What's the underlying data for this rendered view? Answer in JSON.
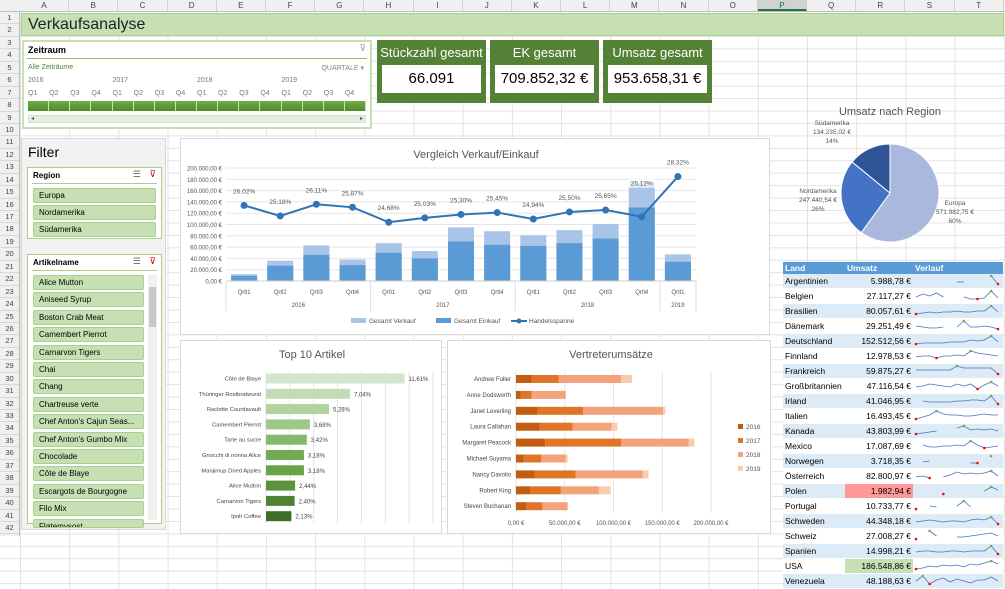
{
  "columns": [
    "A",
    "B",
    "C",
    "D",
    "E",
    "F",
    "G",
    "H",
    "I",
    "J",
    "K",
    "L",
    "M",
    "N",
    "O",
    "P",
    "Q",
    "R",
    "S",
    "T"
  ],
  "selected_column": "P",
  "title": "Verkaufsanalyse",
  "timeline": {
    "title": "Zeitraum",
    "selection": "Alle Zeiträume",
    "level": "QUARTALE ▾",
    "years": [
      "2016",
      "2017",
      "2018",
      "2019"
    ],
    "quarters": [
      "Q1",
      "Q2",
      "Q3",
      "Q4"
    ]
  },
  "kpis": [
    {
      "label": "Stückzahl gesamt",
      "value": "66.091"
    },
    {
      "label": "EK gesamt",
      "value": "709.852,32 €"
    },
    {
      "label": "Umsatz gesamt",
      "value": "953.658,31 €"
    }
  ],
  "filter": {
    "title": "Filter",
    "region": {
      "title": "Region",
      "items": [
        "Europa",
        "Nordamerika",
        "Südamerika"
      ]
    },
    "artikel": {
      "title": "Artikelname",
      "items": [
        "Alice Mutton",
        "Aniseed Syrup",
        "Boston Crab Meat",
        "Camembert Pierrot",
        "Carnarvon Tigers",
        "Chai",
        "Chang",
        "Chartreuse verte",
        "Chef Anton's Cajun Seas...",
        "Chef Anton's Gumbo Mix",
        "Chocolade",
        "Côte de Blaye",
        "Escargots de Bourgogne",
        "Filo Mix",
        "Fløtemysost"
      ]
    }
  },
  "chart_data": [
    {
      "type": "bar",
      "title": "Vergleich Verkauf/Einkauf",
      "categories": [
        "Qrtl1",
        "Qrtl2",
        "Qrtl3",
        "Qrtl4",
        "Qrtl1",
        "Qrtl2",
        "Qrtl3",
        "Qrtl4",
        "Qrtl1",
        "Qrtl2",
        "Qrtl3",
        "Qrtl4",
        "Qrtl1"
      ],
      "groups": [
        {
          "label": "2016",
          "count": 4
        },
        {
          "label": "2017",
          "count": 4
        },
        {
          "label": "2018",
          "count": 4
        },
        {
          "label": "2019",
          "count": 1
        }
      ],
      "yticks": [
        "0,00 €",
        "20.000,00 €",
        "40.000,00 €",
        "60.000,00 €",
        "80.000,00 €",
        "100.000,00 €",
        "120.000,00 €",
        "140.000,00 €",
        "160.000,00 €",
        "180.000,00 €",
        "200.000,00 €"
      ],
      "ylim": [
        0,
        200000
      ],
      "y2lim": [
        20,
        29
      ],
      "series": [
        {
          "name": "Gesamt Verkauf",
          "color": "#a9c4e8",
          "values": [
            12000,
            36000,
            63000,
            38000,
            67000,
            53000,
            95000,
            88000,
            81000,
            90000,
            101000,
            175000,
            47000
          ]
        },
        {
          "name": "Gesamt Einkauf",
          "color": "#5b9bd5",
          "values": [
            9000,
            27000,
            46000,
            28000,
            50000,
            40000,
            70000,
            64000,
            62000,
            67000,
            75000,
            130000,
            34000
          ]
        },
        {
          "name": "Handelsspanne",
          "color": "#2e75b6",
          "axis": "secondary",
          "values": [
            26.02,
            25.18,
            26.11,
            25.87,
            24.68,
            25.03,
            25.3,
            25.45,
            24.94,
            25.5,
            25.65,
            25.12,
            28.32
          ],
          "labels": [
            "26,02%",
            "25,18%",
            "26,11%",
            "25,87%",
            "24,68%",
            "25,03%",
            "25,30%",
            "25,45%",
            "24,94%",
            "25,50%",
            "25,65%",
            "25,12%",
            "28,32%"
          ]
        }
      ]
    },
    {
      "type": "bar",
      "orientation": "horizontal",
      "title": "Top 10 Artikel",
      "categories": [
        "Côte de Blaye",
        "Thüringer Rostbratwurst",
        "Raclette Courdavault",
        "Camembert Pierrot",
        "Tarte au sucre",
        "Gnocchi di nonna Alice",
        "Manjimup Dried Apples",
        "Alice Mutton",
        "Carnarvon Tigers",
        "Ipoh Coffee"
      ],
      "values": [
        11.61,
        7.04,
        5.28,
        3.68,
        3.42,
        3.18,
        3.18,
        2.44,
        2.4,
        2.13
      ],
      "labels": [
        "11,61%",
        "7,04%",
        "5,28%",
        "3,68%",
        "3,42%",
        "3,18%",
        "3,18%",
        "2,44%",
        "2,40%",
        "2,13%"
      ],
      "xlim": [
        0,
        14
      ],
      "colors": [
        "#d3e5cb",
        "#c3dcb5",
        "#b2d29f",
        "#9ec788",
        "#86b86a",
        "#74ab52",
        "#6ba247",
        "#5c923b",
        "#4f8232",
        "#3f6f27"
      ]
    },
    {
      "type": "bar",
      "orientation": "horizontal",
      "stacked": true,
      "title": "Vertreterumsätze",
      "categories": [
        "Andrew Fuller",
        "Anne Dodsworth",
        "Janet Leverling",
        "Laura Callahan",
        "Margaret Peacock",
        "Michael Suyama",
        "Nancy Davolio",
        "Robert King",
        "Steven Buchanan"
      ],
      "xticks": [
        "0,00 €",
        "50.000,00 €",
        "100.000,00 €",
        "150.000,00 €",
        "200.000,00 €"
      ],
      "xlim": [
        0,
        200000
      ],
      "legend": "right",
      "series": [
        {
          "name": "2016",
          "color": "#c55a11",
          "values": [
            16000,
            5000,
            22000,
            24000,
            30000,
            8000,
            19000,
            15000,
            11000
          ]
        },
        {
          "name": "2017",
          "color": "#e0752a",
          "values": [
            28000,
            11000,
            47000,
            34000,
            78000,
            18000,
            42000,
            31000,
            16000
          ]
        },
        {
          "name": "2018",
          "color": "#f4a27a",
          "values": [
            64000,
            35000,
            82000,
            40000,
            69000,
            25000,
            69000,
            39000,
            26000
          ]
        },
        {
          "name": "2019",
          "color": "#f8cbad",
          "values": [
            11000,
            0,
            2000,
            6000,
            6000,
            2000,
            6000,
            12000,
            0
          ]
        }
      ]
    },
    {
      "type": "pie",
      "title": "Umsatz nach Region",
      "slices": [
        {
          "name": "Europa",
          "value": 571982.75,
          "label": "571.982,75 €",
          "pct": "60%",
          "color": "#a9b8dc"
        },
        {
          "name": "Nordamerika",
          "value": 247440.54,
          "label": "247.440,54 €",
          "pct": "26%",
          "color": "#4472c4"
        },
        {
          "name": "Südamerika",
          "value": 134235.02,
          "label": "134.235,02 €",
          "pct": "14%",
          "color": "#2f5597"
        }
      ]
    }
  ],
  "table": {
    "headers": [
      "Land",
      "Umsatz",
      "Verlauf"
    ],
    "rows": [
      {
        "land": "Argentinien",
        "umsatz": "5.988,78 €",
        "trend": [
          null,
          null,
          null,
          null,
          null,
          null,
          3,
          3,
          null,
          null,
          null,
          9,
          1
        ]
      },
      {
        "land": "Belgien",
        "umsatz": "27.117,27 €",
        "trend": [
          3,
          6,
          4,
          7,
          3,
          null,
          null,
          3,
          1,
          1,
          2,
          9,
          2
        ]
      },
      {
        "land": "Brasilien",
        "umsatz": "80.057,61 €",
        "trend": [
          1,
          2,
          3,
          2,
          3,
          3,
          4,
          3,
          3,
          4,
          4,
          9,
          3
        ]
      },
      {
        "land": "Dänemark",
        "umsatz": "29.251,49 €",
        "trend": [
          4,
          3,
          2,
          2,
          3,
          null,
          3,
          9,
          3,
          3,
          4,
          3,
          1
        ]
      },
      {
        "land": "Deutschland",
        "umsatz": "152.512,56 €",
        "trend": [
          1,
          2,
          2,
          2,
          2,
          3,
          3,
          3,
          5,
          4,
          5,
          9,
          3
        ]
      },
      {
        "land": "Finnland",
        "umsatz": "12.978,53 €",
        "trend": [
          3,
          4,
          4,
          2,
          4,
          4,
          5,
          4,
          9,
          7,
          6,
          5,
          4
        ]
      },
      {
        "land": "Frankreich",
        "umsatz": "59.875,27 €",
        "trend": [
          5,
          5,
          5,
          5,
          5,
          5,
          9,
          7,
          7,
          7,
          7,
          7,
          1
        ]
      },
      {
        "land": "Großbritannien",
        "umsatz": "47.116,54 €",
        "trend": [
          3,
          4,
          6,
          5,
          4,
          3,
          6,
          4,
          6,
          1,
          5,
          8,
          4
        ]
      },
      {
        "land": "Irland",
        "umsatz": "41.046,95 €",
        "trend": [
          null,
          4,
          3,
          3,
          3,
          3,
          4,
          4,
          5,
          5,
          4,
          9,
          1
        ]
      },
      {
        "land": "Italien",
        "umsatz": "16.493,45 €",
        "trend": [
          1,
          3,
          5,
          9,
          6,
          5,
          5,
          4,
          4,
          5,
          6,
          5,
          5
        ]
      },
      {
        "land": "Kanada",
        "umsatz": "43.803,99 €",
        "trend": [
          1,
          2,
          3,
          4,
          null,
          null,
          7,
          9,
          5,
          6,
          5,
          6,
          4
        ]
      },
      {
        "land": "Mexico",
        "umsatz": "17.087,69 €",
        "trend": [
          null,
          5,
          3,
          3,
          4,
          4,
          5,
          4,
          9,
          5,
          2,
          3,
          4
        ]
      },
      {
        "land": "Norwegen",
        "umsatz": "3.718,35 €",
        "trend": [
          null,
          3,
          4,
          null,
          null,
          null,
          null,
          null,
          2,
          2,
          null,
          9,
          null
        ]
      },
      {
        "land": "Österreich",
        "umsatz": "82.800,97 €",
        "trend": [
          3,
          4,
          2,
          null,
          3,
          5,
          8,
          6,
          7,
          6,
          7,
          9,
          4
        ]
      },
      {
        "land": "Polen",
        "umsatz": "1.982,94 €",
        "trend": [
          null,
          null,
          null,
          null,
          1,
          null,
          null,
          null,
          null,
          null,
          4,
          8,
          5
        ]
      },
      {
        "land": "Portugal",
        "umsatz": "10.733,77 €",
        "trend": [
          1,
          null,
          4,
          3,
          null,
          null,
          4,
          9,
          3,
          null,
          null,
          null,
          null
        ]
      },
      {
        "land": "Schweden",
        "umsatz": "44.348,18 €",
        "trend": [
          3,
          4,
          5,
          4,
          3,
          4,
          4,
          3,
          5,
          6,
          5,
          8,
          1
        ]
      },
      {
        "land": "Schweiz",
        "umsatz": "27.008,27 €",
        "trend": [
          1,
          null,
          9,
          4,
          null,
          null,
          3,
          3,
          4,
          5,
          6,
          7,
          4
        ]
      },
      {
        "land": "Spanien",
        "umsatz": "14.998,21 €",
        "trend": [
          3,
          4,
          4,
          3,
          3,
          4,
          4,
          3,
          4,
          4,
          4,
          9,
          1
        ]
      },
      {
        "land": "USA",
        "umsatz": "186.548,86 €",
        "trend": [
          1,
          2,
          4,
          3,
          5,
          4,
          5,
          3,
          6,
          5,
          7,
          9,
          6
        ]
      },
      {
        "land": "Venezuela",
        "umsatz": "48.188,63 €",
        "trend": [
          4,
          9,
          1,
          5,
          7,
          3,
          6,
          4,
          2,
          5,
          5,
          8,
          4
        ]
      }
    ],
    "highlight_low": {
      "row": "Polen",
      "color": "#ff9999"
    },
    "highlight_high": {
      "row": "USA",
      "color": "#c6e0b4"
    },
    "sparkline_color": "#4472c4",
    "high_marker": "#70ad47",
    "low_marker": "#ff0000"
  }
}
